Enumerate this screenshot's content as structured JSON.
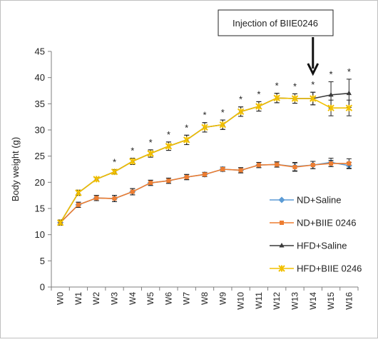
{
  "chart_data": {
    "type": "line",
    "title": "",
    "xlabel": "",
    "ylabel": "Body weight (g)",
    "ylim": [
      0,
      45
    ],
    "yticks": [
      0,
      5,
      10,
      15,
      20,
      25,
      30,
      35,
      40,
      45
    ],
    "categories": [
      "W0",
      "W1",
      "W2",
      "W3",
      "W4",
      "W5",
      "W6",
      "W7",
      "W8",
      "W9",
      "W10",
      "W11",
      "W12",
      "W13",
      "W14",
      "W15",
      "W16"
    ],
    "grid": false,
    "legend_position": "right",
    "annotation": {
      "text": "Injection of BIIE0246",
      "at_category": "W14"
    },
    "significance_marker": "*",
    "significance_categories": [
      "W3",
      "W4",
      "W5",
      "W6",
      "W7",
      "W8",
      "W9",
      "W10",
      "W11",
      "W12",
      "W13",
      "W14",
      "W15",
      "W16"
    ],
    "series": [
      {
        "name": "ND+Saline",
        "color": "#5b9bd5",
        "marker": "diamond",
        "values": [
          12.3,
          15.7,
          17.0,
          16.9,
          18.2,
          19.9,
          20.3,
          21.0,
          21.5,
          22.5,
          22.3,
          23.3,
          23.4,
          23.0,
          23.3,
          23.8,
          23.2
        ],
        "errors": [
          0.5,
          0.5,
          0.5,
          0.6,
          0.6,
          0.5,
          0.5,
          0.5,
          0.4,
          0.4,
          0.5,
          0.5,
          0.5,
          0.8,
          0.7,
          0.8,
          0.6
        ]
      },
      {
        "name": "ND+BIIE 0246",
        "color": "#ed7d31",
        "marker": "square",
        "values": [
          12.3,
          15.7,
          17.0,
          16.9,
          18.2,
          19.9,
          20.3,
          21.0,
          21.5,
          22.5,
          22.3,
          23.3,
          23.4,
          22.9,
          23.3,
          23.6,
          23.6
        ],
        "errors": [
          0.5,
          0.5,
          0.5,
          0.6,
          0.6,
          0.5,
          0.5,
          0.5,
          0.4,
          0.4,
          0.5,
          0.5,
          0.5,
          0.8,
          0.7,
          0.6,
          0.9
        ]
      },
      {
        "name": "HFD+Saline",
        "color": "#3a3a3a",
        "marker": "triangle",
        "values": [
          12.3,
          18.0,
          20.6,
          22.0,
          24.0,
          25.5,
          26.9,
          28.1,
          30.5,
          31.0,
          33.5,
          34.5,
          36.1,
          36.0,
          36.0,
          36.7,
          37.0
        ],
        "errors": [
          0.5,
          0.5,
          0.3,
          0.4,
          0.6,
          0.7,
          0.8,
          0.9,
          0.9,
          0.9,
          0.9,
          0.9,
          0.9,
          0.9,
          1.2,
          2.5,
          2.7
        ]
      },
      {
        "name": "HFD+BIIE 0246",
        "color": "#f2c000",
        "marker": "x",
        "values": [
          12.3,
          18.0,
          20.6,
          22.0,
          24.0,
          25.5,
          26.9,
          28.1,
          30.5,
          31.0,
          33.5,
          34.5,
          36.1,
          36.0,
          36.0,
          34.2,
          34.2
        ],
        "errors": [
          0.5,
          0.5,
          0.3,
          0.4,
          0.6,
          0.7,
          0.8,
          0.9,
          0.9,
          0.9,
          0.9,
          0.9,
          0.9,
          0.9,
          1.2,
          1.5,
          1.5
        ]
      }
    ]
  }
}
